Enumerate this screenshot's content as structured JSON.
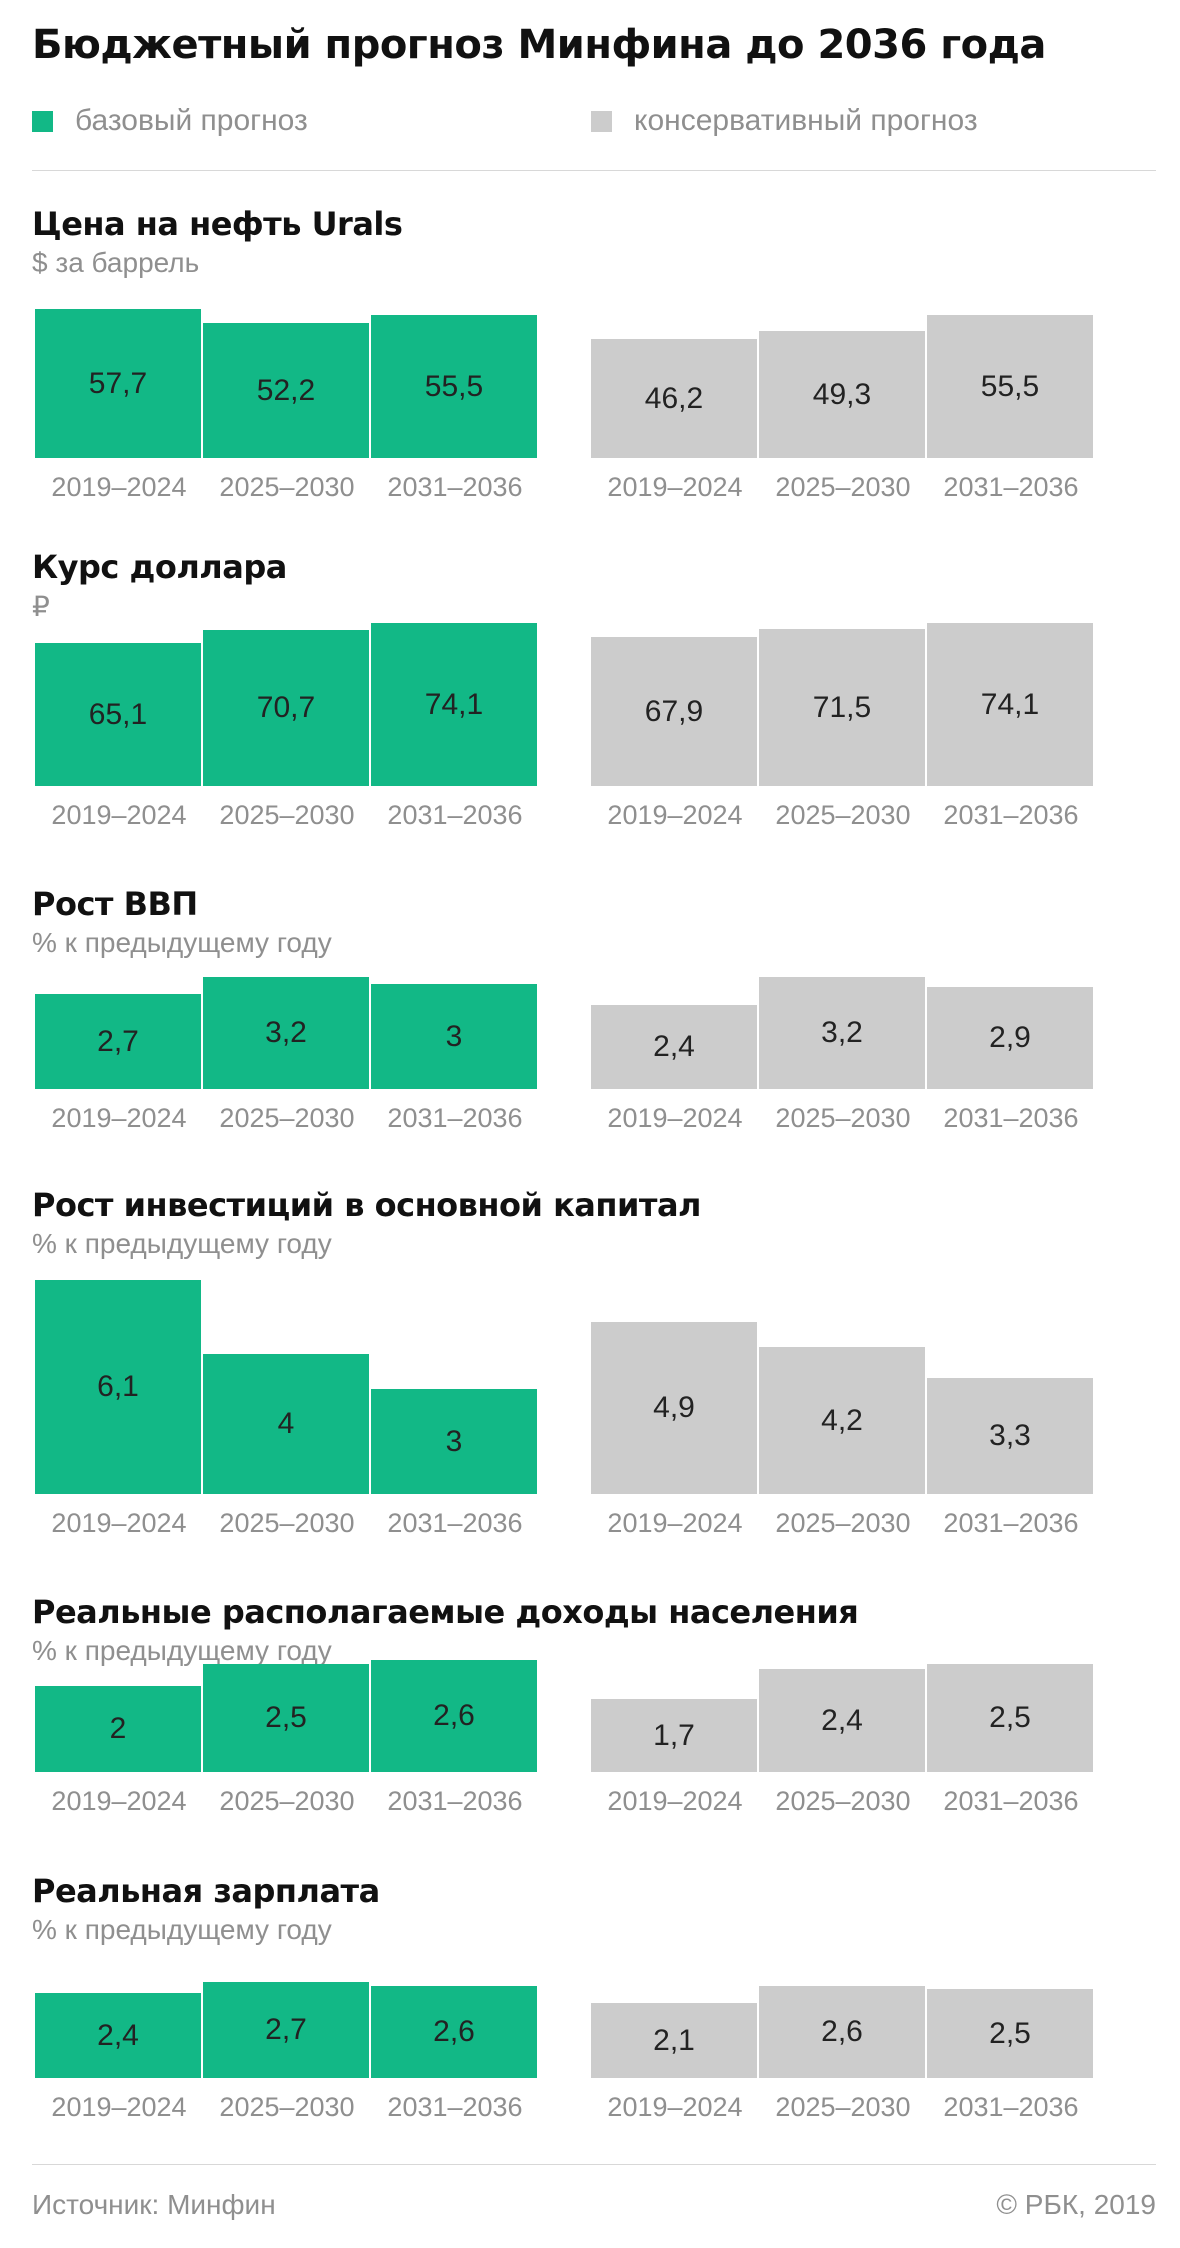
{
  "title": "Бюджетный прогноз Минфина до 2036 года",
  "legend": [
    {
      "label": "базовый прогноз",
      "color": "#12b886"
    },
    {
      "label": "консервативный прогноз",
      "color": "#cccccc"
    }
  ],
  "colors": {
    "base": "#12b886",
    "conservative": "#cccccc"
  },
  "footer": {
    "source": "Источник: Минфин",
    "copyright": "© РБК, 2019"
  },
  "chart_data": [
    {
      "type": "bar",
      "title": "Цена на нефть Urals",
      "unit": "$ за баррель",
      "categories": [
        "2019–2024",
        "2025–2030",
        "2031–2036"
      ],
      "series": [
        {
          "name": "базовый прогноз",
          "values": [
            57.7,
            52.2,
            55.5
          ],
          "labels": [
            "57,7",
            "52,2",
            "55,5"
          ]
        },
        {
          "name": "консервативный прогноз",
          "values": [
            46.2,
            49.3,
            55.5
          ],
          "labels": [
            "46,2",
            "49,3",
            "55,5"
          ]
        }
      ]
    },
    {
      "type": "bar",
      "title": "Курс доллара",
      "unit": "₽",
      "categories": [
        "2019–2024",
        "2025–2030",
        "2031–2036"
      ],
      "series": [
        {
          "name": "базовый прогноз",
          "values": [
            65.1,
            70.7,
            74.1
          ],
          "labels": [
            "65,1",
            "70,7",
            "74,1"
          ]
        },
        {
          "name": "консервативный прогноз",
          "values": [
            67.9,
            71.5,
            74.1
          ],
          "labels": [
            "67,9",
            "71,5",
            "74,1"
          ]
        }
      ]
    },
    {
      "type": "bar",
      "title": "Рост ВВП",
      "unit": "% к предыдущему году",
      "categories": [
        "2019–2024",
        "2025–2030",
        "2031–2036"
      ],
      "series": [
        {
          "name": "базовый прогноз",
          "values": [
            2.7,
            3.2,
            3
          ],
          "labels": [
            "2,7",
            "3,2",
            "3"
          ]
        },
        {
          "name": "консервативный прогноз",
          "values": [
            2.4,
            3.2,
            2.9
          ],
          "labels": [
            "2,4",
            "3,2",
            "2,9"
          ]
        }
      ]
    },
    {
      "type": "bar",
      "title": "Рост инвестиций в основной капитал",
      "unit": "% к предыдущему году",
      "categories": [
        "2019–2024",
        "2025–2030",
        "2031–2036"
      ],
      "series": [
        {
          "name": "базовый прогноз",
          "values": [
            6.1,
            4,
            3
          ],
          "labels": [
            "6,1",
            "4",
            "3"
          ]
        },
        {
          "name": "консервативный прогноз",
          "values": [
            4.9,
            4.2,
            3.3
          ],
          "labels": [
            "4,9",
            "4,2",
            "3,3"
          ]
        }
      ]
    },
    {
      "type": "bar",
      "title": "Реальные располагаемые доходы населения",
      "unit": "% к предыдущему году",
      "categories": [
        "2019–2024",
        "2025–2030",
        "2031–2036"
      ],
      "series": [
        {
          "name": "базовый прогноз",
          "values": [
            2,
            2.5,
            2.6
          ],
          "labels": [
            "2",
            "2,5",
            "2,6"
          ]
        },
        {
          "name": "консервативный прогноз",
          "values": [
            1.7,
            2.4,
            2.5
          ],
          "labels": [
            "1,7",
            "2,4",
            "2,5"
          ]
        }
      ]
    },
    {
      "type": "bar",
      "title": "Реальная зарплата",
      "unit": "% к предыдущему году",
      "categories": [
        "2019–2024",
        "2025–2030",
        "2031–2036"
      ],
      "series": [
        {
          "name": "базовый прогноз",
          "values": [
            2.4,
            2.7,
            2.6
          ],
          "labels": [
            "2,4",
            "2,7",
            "2,6"
          ]
        },
        {
          "name": "консервативный прогноз",
          "values": [
            2.1,
            2.6,
            2.5
          ],
          "labels": [
            "2,1",
            "2,6",
            "2,5"
          ]
        }
      ]
    }
  ]
}
